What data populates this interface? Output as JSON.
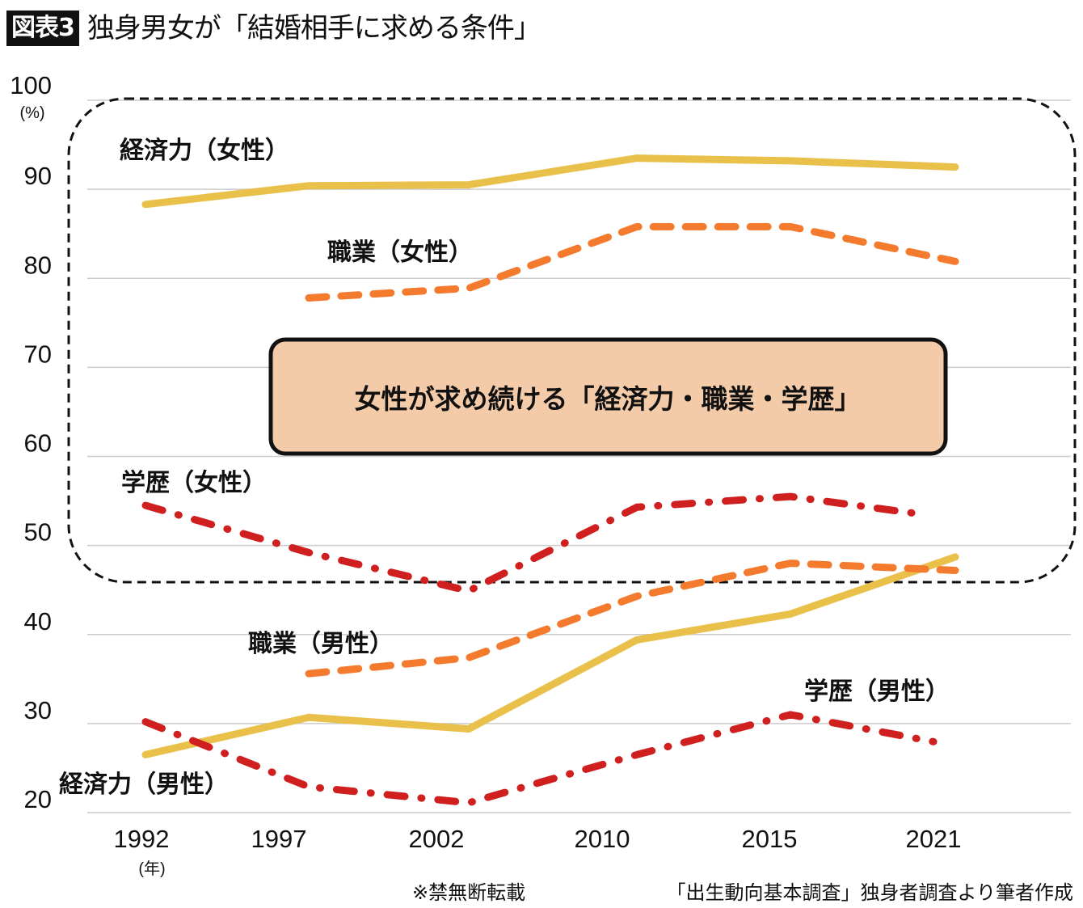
{
  "title": {
    "badge": "図表3",
    "text": "独身男女が「結婚相手に求める条件」"
  },
  "callout": "女性が求め続ける「経済力・職業・学歴」",
  "footnote": {
    "copyright": "※禁無断転載",
    "source": "「出生動向基本調査」独身者調査より筆者作成"
  },
  "colors": {
    "economic": "#E8C04A",
    "occupation": "#F47A2E",
    "education": "#D01F1F",
    "callout_fill": "#F4CBA8",
    "grid": "#CCCCCC"
  },
  "chart_data": {
    "type": "line",
    "title": "独身男女が「結婚相手に求める条件」",
    "xlabel": "(年)",
    "ylabel": "(%)",
    "categories": [
      "1992",
      "1997",
      "2002",
      "2010",
      "2015",
      "2021"
    ],
    "ylim": [
      20,
      100
    ],
    "yticks": [
      100,
      90,
      80,
      70,
      60,
      50,
      40,
      30,
      20
    ],
    "grid": true,
    "series": [
      {
        "name": "経済力(女性)",
        "label": "経済力（女性）",
        "color_key": "economic",
        "style": "solid",
        "values": [
          88.3,
          90.4,
          90.5,
          93.5,
          93.2,
          92.5
        ]
      },
      {
        "name": "職業(女性)",
        "label": "職業（女性）",
        "color_key": "occupation",
        "style": "dashed",
        "values": [
          null,
          77.8,
          78.9,
          85.8,
          85.8,
          81.9
        ]
      },
      {
        "name": "学歴(女性)",
        "label": "学歴（女性）",
        "color_key": "education",
        "style": "dashdot",
        "values": [
          54.5,
          49.2,
          44.9,
          54.3,
          55.5,
          53.0
        ]
      },
      {
        "name": "経済力(男性)",
        "label": "経済力（男性）",
        "color_key": "economic",
        "style": "solid",
        "values": [
          26.5,
          30.7,
          29.4,
          39.4,
          42.3,
          48.7
        ]
      },
      {
        "name": "職業(男性)",
        "label": "職業（男性）",
        "color_key": "occupation",
        "style": "dashed",
        "values": [
          null,
          35.6,
          37.4,
          44.3,
          48.0,
          47.2
        ]
      },
      {
        "name": "学歴(男性)",
        "label": "学歴（男性）",
        "color_key": "education",
        "style": "dashdot",
        "values": [
          30.2,
          22.9,
          21.1,
          26.5,
          31.0,
          27.5
        ]
      }
    ]
  }
}
